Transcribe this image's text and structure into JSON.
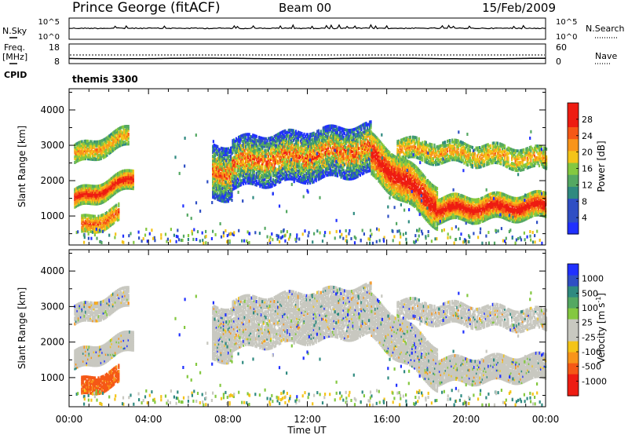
{
  "header": {
    "title": "Prince George (fitACF)",
    "beam": "Beam 00",
    "date": "15/Feb/2009"
  },
  "noise_panel": {
    "left_label": "N.Sky",
    "right_label": "N.Search",
    "left_ticks": [
      "10^5",
      "10^0"
    ],
    "right_ticks": [
      "10^5",
      "10^0"
    ]
  },
  "freq_panel": {
    "left_label_1": "Freq.",
    "left_label_2": "[MHz]",
    "right_label": "Nave",
    "left_ticks": [
      "18",
      "8"
    ],
    "right_ticks": [
      "60",
      "0"
    ]
  },
  "cpid": {
    "label": "CPID",
    "value": "themis 3300"
  },
  "colors": {
    "scale": [
      "#2030ff",
      "#2f4fc4",
      "#2f8a80",
      "#54a862",
      "#84c840",
      "#f4c418",
      "#f8941a",
      "#f55816",
      "#ee1c12"
    ],
    "ground_scatter": "#c8c8c0"
  },
  "chart_data": [
    {
      "type": "heatmap",
      "name": "power",
      "ylabel": "Slant Range [km]",
      "xlabel": "",
      "x_range_hours": [
        0,
        24
      ],
      "ylim": [
        180,
        4600
      ],
      "yticks": [
        "4000",
        "3000",
        "2000",
        "1000"
      ],
      "colorbar_label": "Power [dB]",
      "colorbar_ticks": [
        "28",
        "24",
        "20",
        "16",
        "12",
        "8",
        "4"
      ],
      "colorbar_range": [
        0,
        30
      ]
    },
    {
      "type": "heatmap",
      "name": "velocity",
      "ylabel": "Slant Range [km]",
      "xlabel": "Time UT",
      "x_range_hours": [
        0,
        24
      ],
      "ylim": [
        180,
        4600
      ],
      "yticks": [
        "4000",
        "3000",
        "2000",
        "1000"
      ],
      "xticks": [
        "00:00",
        "04:00",
        "08:00",
        "12:00",
        "16:00",
        "20:00",
        "00:00"
      ],
      "colorbar_label": "Velocity [m s",
      "colorbar_label_exp": "-1",
      "colorbar_label_end": "]",
      "colorbar_ticks": [
        "1000",
        "500",
        "100",
        "25",
        "-25",
        "-100",
        "-500",
        "-1000"
      ],
      "colorbar_range": [
        -1000,
        1000
      ]
    }
  ]
}
